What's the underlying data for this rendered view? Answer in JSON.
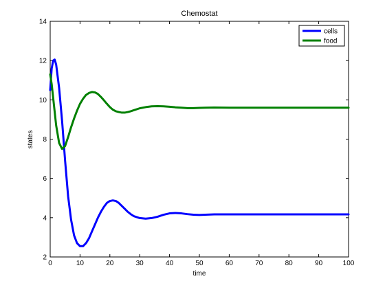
{
  "chart_data": {
    "type": "line",
    "title": "Chemostat",
    "xlabel": "time",
    "ylabel": "states",
    "xlim": [
      0,
      100
    ],
    "ylim": [
      2,
      14
    ],
    "xticks": [
      0,
      10,
      20,
      30,
      40,
      50,
      60,
      70,
      80,
      90,
      100
    ],
    "yticks": [
      2,
      4,
      6,
      8,
      10,
      12,
      14
    ],
    "grid": false,
    "legend_position": "top-right",
    "series": [
      {
        "name": "cells",
        "color": "#0000ff",
        "x": [
          0,
          0.5,
          1,
          1.5,
          2,
          3,
          4,
          5,
          6,
          7,
          8,
          9,
          10,
          11,
          12,
          13,
          14,
          15,
          16,
          17,
          18,
          19,
          20,
          21,
          22,
          23,
          24,
          25,
          26,
          27,
          28,
          30,
          32,
          34,
          36,
          38,
          40,
          42,
          44,
          46,
          48,
          50,
          52,
          55,
          60,
          65,
          70,
          80,
          90,
          100
        ],
        "y": [
          10.5,
          11.6,
          12.0,
          12.05,
          11.8,
          10.6,
          8.9,
          6.9,
          5.1,
          3.9,
          3.1,
          2.7,
          2.55,
          2.55,
          2.7,
          2.95,
          3.3,
          3.65,
          4.0,
          4.3,
          4.55,
          4.75,
          4.85,
          4.88,
          4.85,
          4.75,
          4.6,
          4.45,
          4.3,
          4.18,
          4.08,
          3.98,
          3.95,
          3.98,
          4.05,
          4.15,
          4.22,
          4.24,
          4.22,
          4.18,
          4.15,
          4.14,
          4.15,
          4.17,
          4.17,
          4.17,
          4.17,
          4.17,
          4.17,
          4.17
        ]
      },
      {
        "name": "food",
        "color": "#008000",
        "x": [
          0,
          0.5,
          1,
          2,
          3,
          4,
          5,
          6,
          7,
          8,
          9,
          10,
          11,
          12,
          13,
          14,
          15,
          16,
          17,
          18,
          19,
          20,
          21,
          22,
          23,
          24,
          25,
          26,
          27,
          28,
          30,
          32,
          34,
          36,
          38,
          40,
          42,
          44,
          46,
          48,
          50,
          52,
          55,
          60,
          65,
          70,
          80,
          90,
          100
        ],
        "y": [
          11.3,
          10.8,
          10.1,
          8.7,
          7.8,
          7.5,
          7.65,
          8.1,
          8.6,
          9.05,
          9.45,
          9.8,
          10.05,
          10.25,
          10.35,
          10.4,
          10.38,
          10.3,
          10.15,
          9.98,
          9.8,
          9.63,
          9.5,
          9.42,
          9.38,
          9.35,
          9.35,
          9.38,
          9.42,
          9.47,
          9.57,
          9.63,
          9.67,
          9.68,
          9.67,
          9.65,
          9.62,
          9.6,
          9.58,
          9.58,
          9.59,
          9.6,
          9.61,
          9.6,
          9.6,
          9.6,
          9.6,
          9.6,
          9.6
        ]
      }
    ]
  }
}
